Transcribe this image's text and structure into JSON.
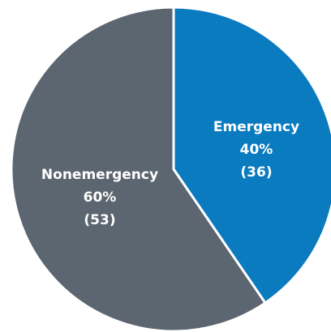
{
  "chart_data": {
    "type": "pie",
    "title": "",
    "slices": [
      {
        "label": "Emergency",
        "percent": "40%",
        "count": "(36)",
        "value": 36,
        "color": "#0a7bbf"
      },
      {
        "label": "Nonemergency",
        "percent": "60%",
        "count": "(53)",
        "value": 53,
        "color": "#5c6670"
      }
    ],
    "slice_border_color": "#ffffff",
    "start_angle": "12 o'clock",
    "direction": "clockwise"
  }
}
